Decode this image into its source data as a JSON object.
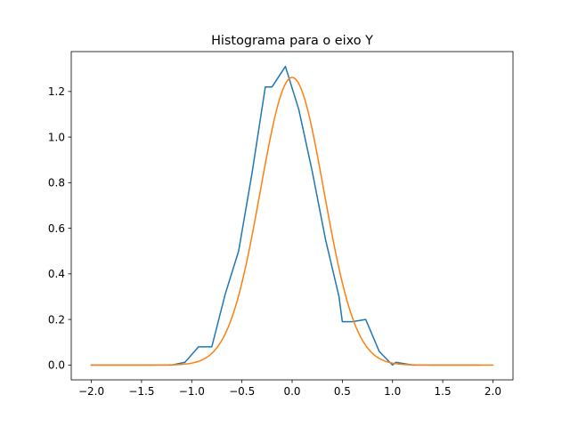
{
  "chart_data": {
    "type": "line",
    "title": "Histograma para o eixo Y",
    "xlabel": "",
    "ylabel": "",
    "xlim": [
      -2.2,
      2.2
    ],
    "ylim": [
      -0.065,
      1.375
    ],
    "grid": false,
    "x_ticks": [
      -2.0,
      -1.5,
      -1.0,
      -0.5,
      0.0,
      0.5,
      1.0,
      1.5,
      2.0
    ],
    "x_tick_labels": [
      "−2.0",
      "−1.5",
      "−1.0",
      "−0.5",
      "0.0",
      "0.5",
      "1.0",
      "1.5",
      "2.0"
    ],
    "y_ticks": [
      0.0,
      0.2,
      0.4,
      0.6,
      0.8,
      1.0,
      1.2
    ],
    "y_tick_labels": [
      "0.0",
      "0.2",
      "0.4",
      "0.6",
      "0.8",
      "1.0",
      "1.2"
    ],
    "series": [
      {
        "color": "#1f77b4",
        "x": [
          -2.0,
          -1.867,
          -1.733,
          -1.6,
          -1.467,
          -1.333,
          -1.2,
          -1.067,
          -0.933,
          -0.8,
          -0.667,
          -0.533,
          -0.4,
          -0.267,
          -0.2,
          -0.067,
          0.067,
          0.2,
          0.333,
          0.467,
          0.5,
          0.6,
          0.733,
          0.867,
          1.0,
          1.033,
          1.2,
          1.333,
          1.467,
          1.6,
          1.733,
          1.867
        ],
        "y": [
          0.0,
          0.0,
          0.0,
          0.0,
          0.0,
          0.0,
          0.0,
          0.012,
          0.08,
          0.08,
          0.31,
          0.5,
          0.84,
          1.22,
          1.22,
          1.31,
          1.12,
          0.85,
          0.55,
          0.3,
          0.19,
          0.19,
          0.2,
          0.06,
          0.0,
          0.012,
          0.0,
          0.0,
          0.0,
          0.0,
          0.0,
          0.0
        ]
      },
      {
        "color": "#ff7f0e",
        "function": "gaussian",
        "mean": 0.0,
        "std": 0.316,
        "peak": 1.262,
        "x_range": [
          -2.0,
          2.0
        ]
      }
    ]
  }
}
